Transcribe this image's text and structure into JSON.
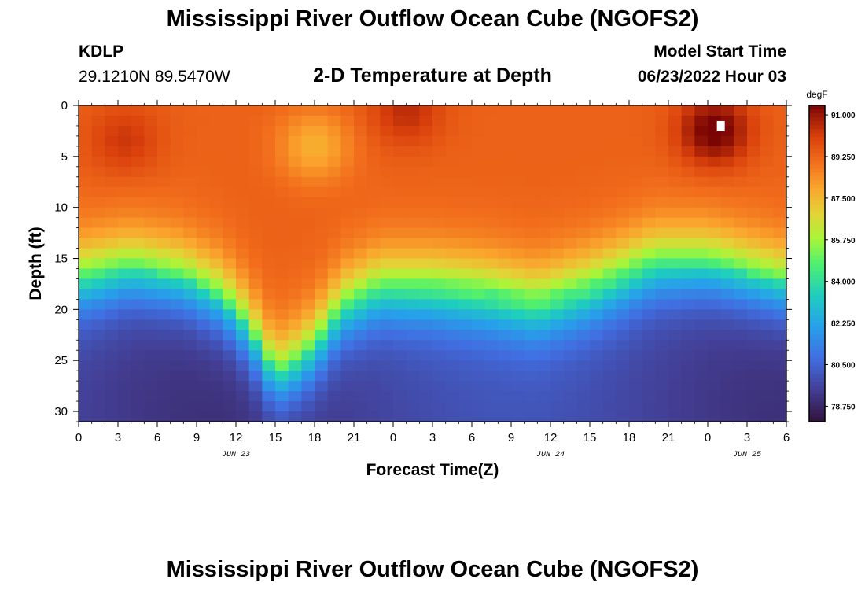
{
  "header": {
    "title": "Mississippi River Outflow Ocean Cube (NGOFS2)",
    "station": "KDLP",
    "coordinates": "29.1210N  89.5470W",
    "subtitle": "2-D Temperature at Depth",
    "model_start_label": "Model Start Time",
    "model_start_value": "06/23/2022 Hour 03"
  },
  "footer": {
    "title": "Mississippi River Outflow Ocean Cube (NGOFS2)"
  },
  "chart_data": {
    "type": "heatmap",
    "title": "2-D Temperature at Depth",
    "xlabel": "Forecast Time(Z)",
    "ylabel": "Depth (ft)",
    "x_range_hours": [
      0,
      54
    ],
    "x_ticks": [
      "0",
      "3",
      "6",
      "9",
      "12",
      "15",
      "18",
      "21",
      "0",
      "3",
      "6",
      "9",
      "12",
      "15",
      "18",
      "21",
      "0",
      "3",
      "6"
    ],
    "date_labels": [
      {
        "label": "JUN 23",
        "hour": 12
      },
      {
        "label": "JUN 24",
        "hour": 36
      },
      {
        "label": "JUN 25",
        "hour": 51
      }
    ],
    "ylim": [
      0,
      31
    ],
    "y_ticks": [
      "0",
      "5",
      "10",
      "15",
      "20",
      "25",
      "30"
    ],
    "colorbar": {
      "unit": "degF",
      "ticks": [
        "91.000",
        "89.250",
        "87.500",
        "85.750",
        "84.000",
        "82.250",
        "80.500",
        "78.750"
      ],
      "range": [
        78.1,
        91.4
      ]
    },
    "surface_temp_degF": 89.3,
    "bottom_temp_degF": 79.5,
    "thermocline_depth_ft": {
      "hours": [
        0,
        4,
        8,
        11,
        13,
        15,
        17,
        19,
        20,
        23,
        27,
        31,
        35,
        39,
        44,
        48,
        51,
        54
      ],
      "depths": [
        17,
        16,
        17,
        19,
        22,
        26.5,
        25,
        22,
        20,
        18,
        18,
        18.5,
        19.5,
        18,
        15.5,
        15.5,
        16.5,
        17.5
      ]
    },
    "warm_spots": [
      {
        "hour": 3.5,
        "depth_ft": 3.5,
        "delta_degF": 1.0
      },
      {
        "hour": 25,
        "depth_ft": 0.5,
        "delta_degF": 1.2
      },
      {
        "hour": 48.5,
        "depth_ft": 2.5,
        "delta_degF": 2.3
      }
    ],
    "cool_spots": [
      {
        "hour": 18,
        "depth_ft": 4,
        "delta_degF": -1.6
      }
    ],
    "missing_cell": {
      "hour": 49,
      "depth_ft": 2
    }
  }
}
